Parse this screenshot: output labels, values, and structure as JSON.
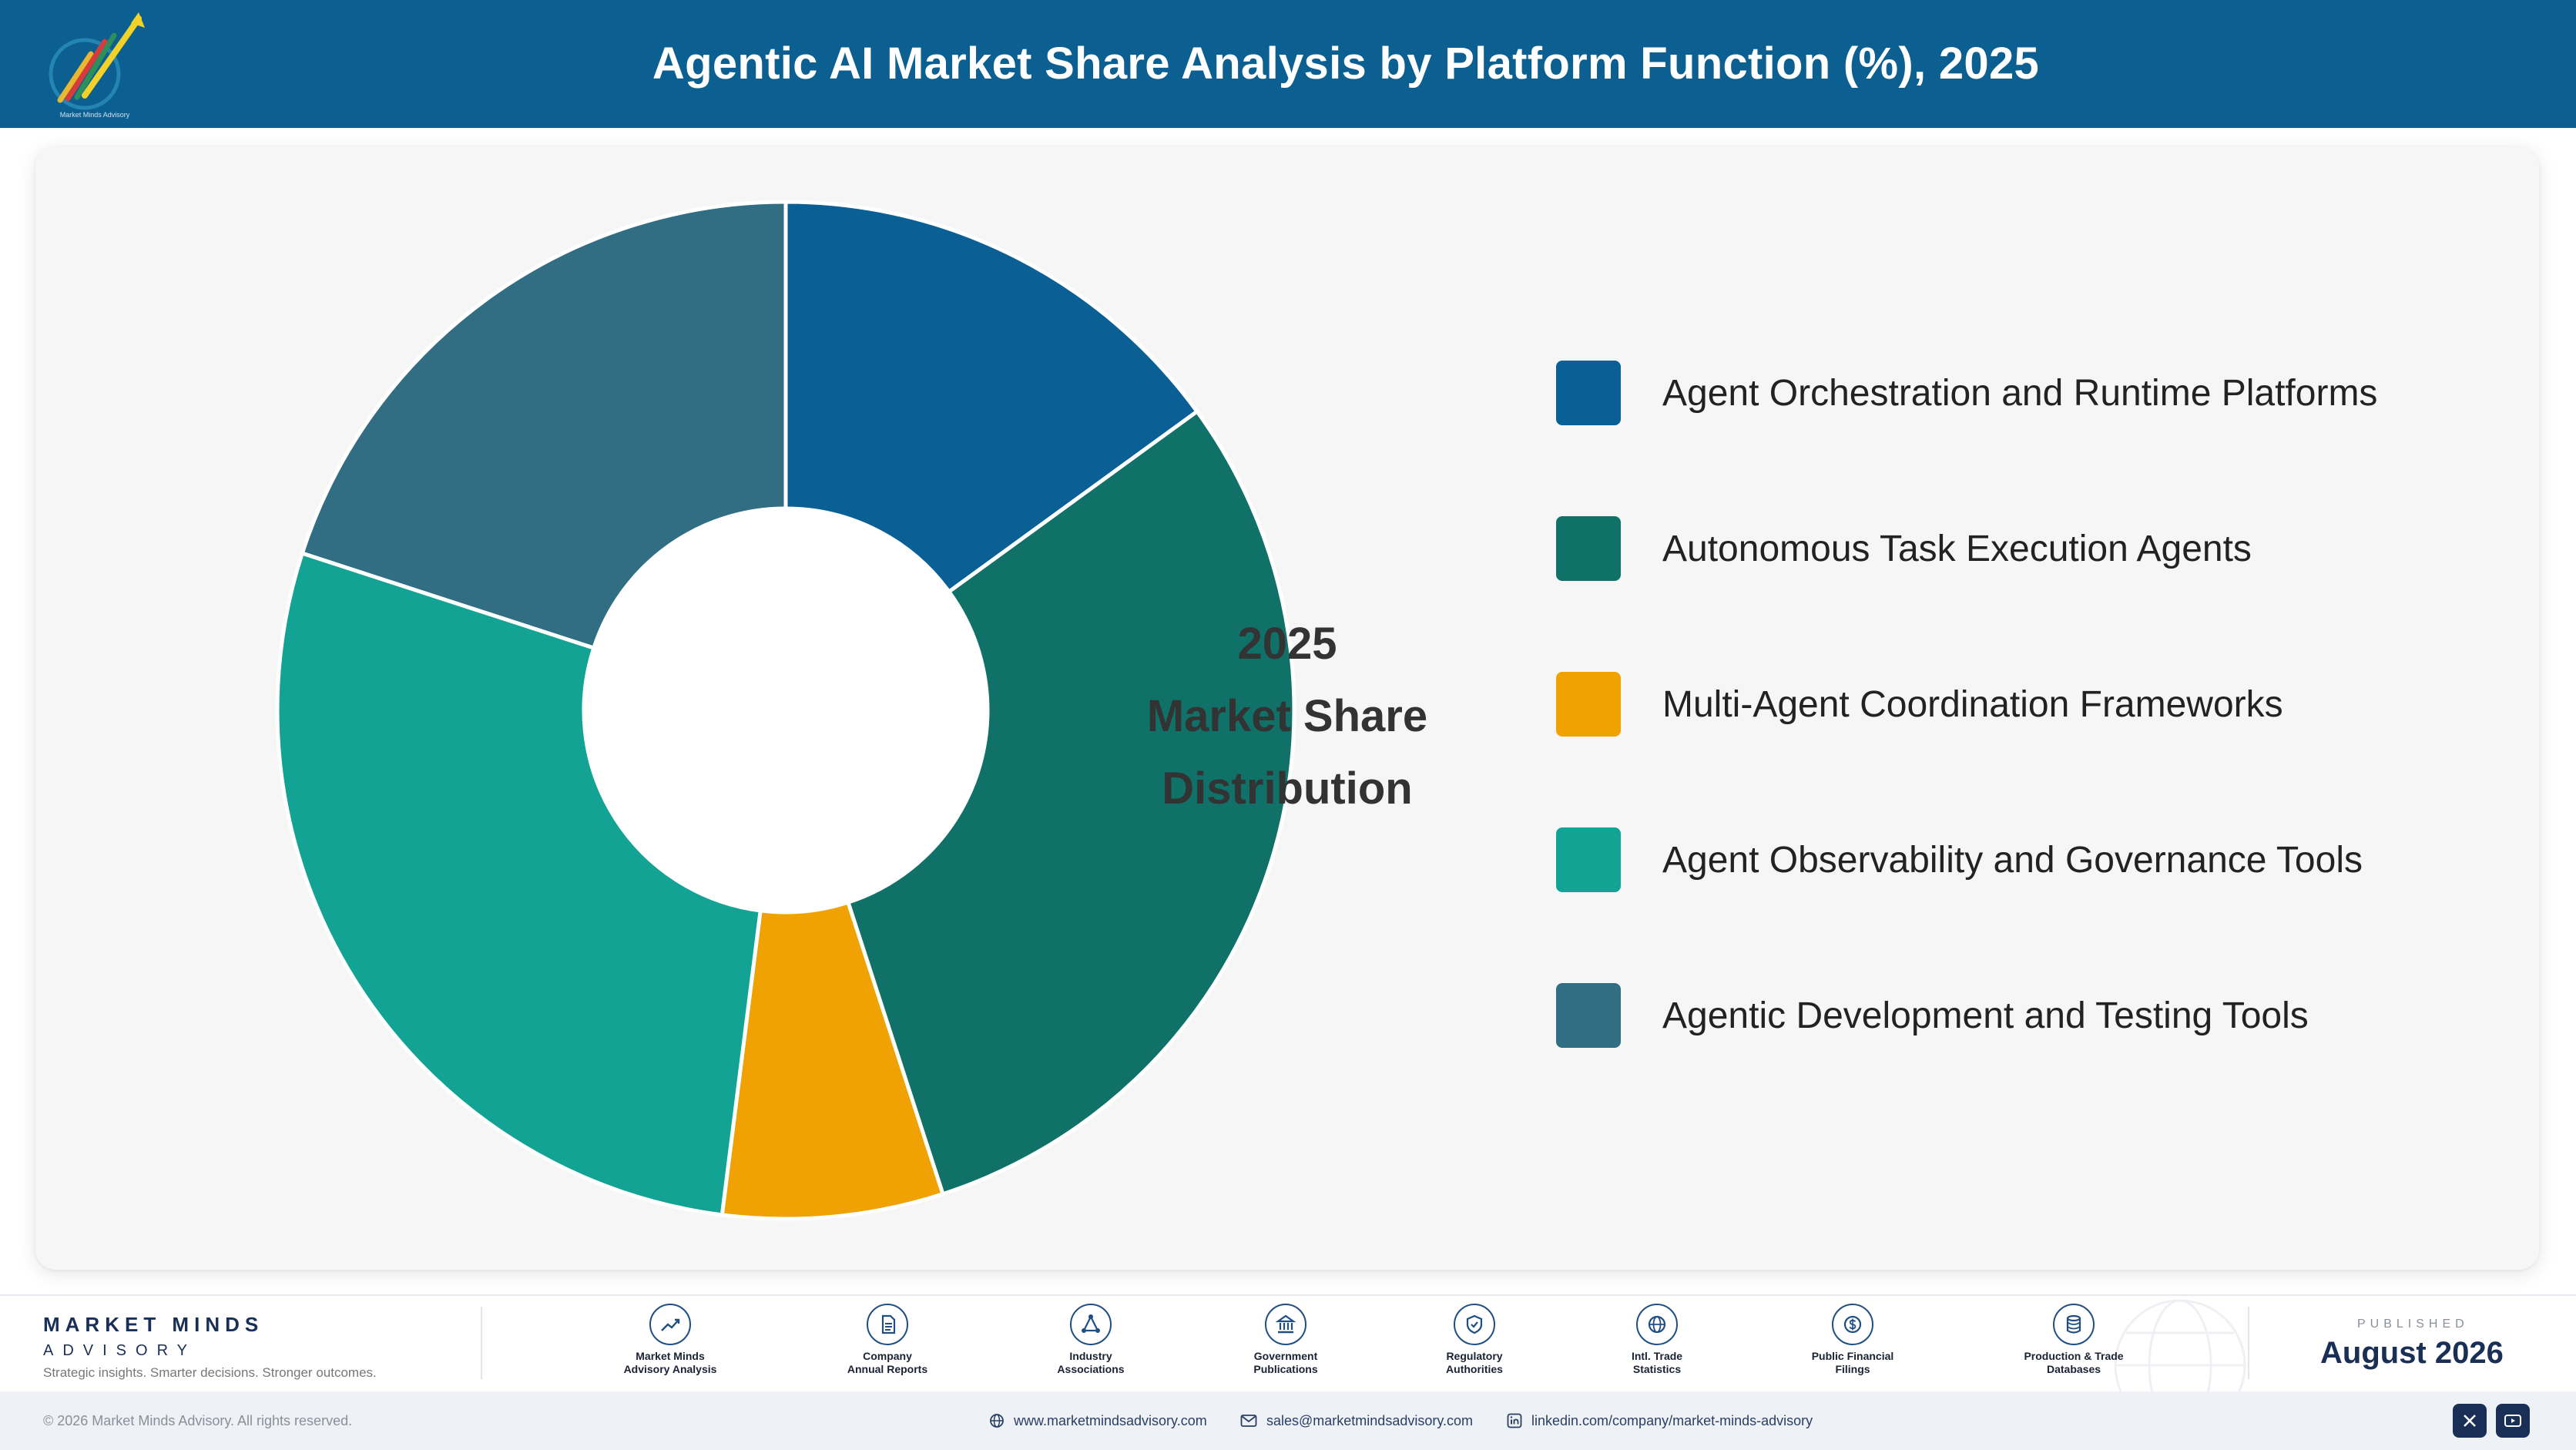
{
  "header": {
    "title": "Agentic AI Market Share Analysis by Platform Function (%), 2025",
    "logo_caption": "Market Minds Advisory"
  },
  "center_label": {
    "line1": "2025",
    "line2": "Market Share",
    "line3": "Distribution"
  },
  "chart_data": {
    "type": "pie",
    "variant": "donut",
    "title": "Agentic AI Market Share Analysis by Platform Function (%), 2025",
    "legend_position": "right",
    "categories": [
      "Agent Orchestration and Runtime Platforms",
      "Autonomous Task Execution Agents",
      "Multi-Agent Coordination Frameworks",
      "Agent Observability and Governance Tools",
      "Agentic Development and Testing Tools"
    ],
    "values": [
      15.0,
      30.0,
      7.0,
      28.0,
      20.0
    ],
    "colors": [
      "#0a5f94",
      "#0f7168",
      "#f0a202",
      "#13a394",
      "#316d83"
    ]
  },
  "footer": {
    "brand_name": "MARKET MINDS",
    "brand_sub": "ADVISORY",
    "brand_tagline": "Strategic insights. Smarter decisions. Stronger outcomes.",
    "sources": [
      {
        "line1": "Market Minds",
        "line2": "Advisory Analysis",
        "icon": "trend-line-icon"
      },
      {
        "line1": "Company",
        "line2": "Annual Reports",
        "icon": "document-icon"
      },
      {
        "line1": "Industry",
        "line2": "Associations",
        "icon": "network-icon"
      },
      {
        "line1": "Government",
        "line2": "Publications",
        "icon": "government-building-icon"
      },
      {
        "line1": "Regulatory",
        "line2": "Authorities",
        "icon": "shield-check-icon"
      },
      {
        "line1": "Intl. Trade",
        "line2": "Statistics",
        "icon": "globe-icon"
      },
      {
        "line1": "Public Financial",
        "line2": "Filings",
        "icon": "dollar-coin-icon"
      },
      {
        "line1": "Production & Trade",
        "line2": "Databases",
        "icon": "database-icon"
      }
    ],
    "published_label": "PUBLISHED",
    "published_date": "August 2026"
  },
  "bottom_bar": {
    "copyright": "© 2026 Market Minds Advisory. All rights reserved.",
    "website": "www.marketmindsadvisory.com",
    "email": "sales@marketmindsadvisory.com",
    "linkedin": "linkedin.com/company/market-minds-advisory"
  }
}
